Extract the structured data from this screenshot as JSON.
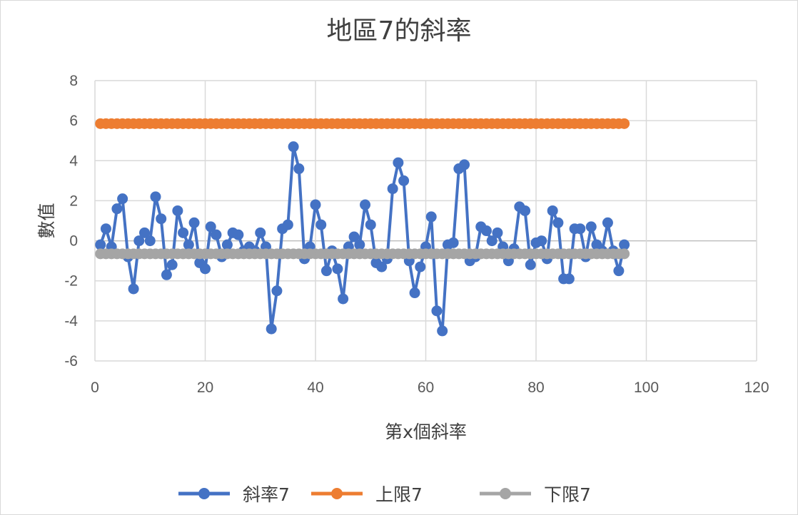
{
  "chart_data": {
    "type": "line",
    "title": "地區7的斜率",
    "xlabel": "第x個斜率",
    "ylabel": "數值",
    "xlim": [
      0,
      120
    ],
    "ylim": [
      -6,
      8
    ],
    "xticks": [
      0,
      20,
      40,
      60,
      80,
      100,
      120
    ],
    "yticks": [
      -6,
      -4,
      -2,
      0,
      2,
      4,
      6,
      8
    ],
    "grid": true,
    "legend_position": "bottom",
    "series": [
      {
        "name": "斜率7",
        "color": "#4472c4",
        "x": [
          1,
          2,
          3,
          4,
          5,
          6,
          7,
          8,
          9,
          10,
          11,
          12,
          13,
          14,
          15,
          16,
          17,
          18,
          19,
          20,
          21,
          22,
          23,
          24,
          25,
          26,
          27,
          28,
          29,
          30,
          31,
          32,
          33,
          34,
          35,
          36,
          37,
          38,
          39,
          40,
          41,
          42,
          43,
          44,
          45,
          46,
          47,
          48,
          49,
          50,
          51,
          52,
          53,
          54,
          55,
          56,
          57,
          58,
          59,
          60,
          61,
          62,
          63,
          64,
          65,
          66,
          67,
          68,
          69,
          70,
          71,
          72,
          73,
          74,
          75,
          76,
          77,
          78,
          79,
          80,
          81,
          82,
          83,
          84,
          85,
          86,
          87,
          88,
          89,
          90,
          91,
          92,
          93,
          94,
          95,
          96
        ],
        "values": [
          -0.2,
          0.6,
          -0.3,
          1.6,
          2.1,
          -0.8,
          -2.4,
          0.0,
          0.4,
          0.0,
          2.2,
          1.1,
          -1.7,
          -1.2,
          1.5,
          0.4,
          -0.2,
          0.9,
          -1.1,
          -1.4,
          0.7,
          0.3,
          -0.8,
          -0.2,
          0.4,
          0.3,
          -0.5,
          -0.3,
          -0.5,
          0.4,
          -0.3,
          -4.4,
          -2.5,
          0.6,
          0.8,
          4.7,
          3.6,
          -0.9,
          -0.3,
          1.8,
          0.8,
          -1.5,
          -0.5,
          -1.4,
          -2.9,
          -0.3,
          0.2,
          -0.2,
          1.8,
          0.8,
          -1.1,
          -1.3,
          -0.9,
          2.6,
          3.9,
          3.0,
          -1.0,
          -2.6,
          -1.3,
          -0.3,
          1.2,
          -3.5,
          -4.5,
          -0.2,
          -0.1,
          3.6,
          3.8,
          -1.0,
          -0.8,
          0.7,
          0.5,
          0.0,
          0.4,
          -0.3,
          -1.0,
          -0.4,
          1.7,
          1.5,
          -1.2,
          -0.1,
          0.0,
          -0.9,
          1.5,
          0.9,
          -1.9,
          -1.9,
          0.6,
          0.6,
          -0.8,
          0.7,
          -0.2,
          -0.5,
          0.9,
          -0.5,
          -1.5,
          -0.2
        ]
      },
      {
        "name": "上限7",
        "color": "#ed7d31",
        "x": [
          1,
          2,
          3,
          4,
          5,
          6,
          7,
          8,
          9,
          10,
          11,
          12,
          13,
          14,
          15,
          16,
          17,
          18,
          19,
          20,
          21,
          22,
          23,
          24,
          25,
          26,
          27,
          28,
          29,
          30,
          31,
          32,
          33,
          34,
          35,
          36,
          37,
          38,
          39,
          40,
          41,
          42,
          43,
          44,
          45,
          46,
          47,
          48,
          49,
          50,
          51,
          52,
          53,
          54,
          55,
          56,
          57,
          58,
          59,
          60,
          61,
          62,
          63,
          64,
          65,
          66,
          67,
          68,
          69,
          70,
          71,
          72,
          73,
          74,
          75,
          76,
          77,
          78,
          79,
          80,
          81,
          82,
          83,
          84,
          85,
          86,
          87,
          88,
          89,
          90,
          91,
          92,
          93,
          94,
          95,
          96
        ],
        "values": [
          5.85,
          5.85,
          5.85,
          5.85,
          5.85,
          5.85,
          5.85,
          5.85,
          5.85,
          5.85,
          5.85,
          5.85,
          5.85,
          5.85,
          5.85,
          5.85,
          5.85,
          5.85,
          5.85,
          5.85,
          5.85,
          5.85,
          5.85,
          5.85,
          5.85,
          5.85,
          5.85,
          5.85,
          5.85,
          5.85,
          5.85,
          5.85,
          5.85,
          5.85,
          5.85,
          5.85,
          5.85,
          5.85,
          5.85,
          5.85,
          5.85,
          5.85,
          5.85,
          5.85,
          5.85,
          5.85,
          5.85,
          5.85,
          5.85,
          5.85,
          5.85,
          5.85,
          5.85,
          5.85,
          5.85,
          5.85,
          5.85,
          5.85,
          5.85,
          5.85,
          5.85,
          5.85,
          5.85,
          5.85,
          5.85,
          5.85,
          5.85,
          5.85,
          5.85,
          5.85,
          5.85,
          5.85,
          5.85,
          5.85,
          5.85,
          5.85,
          5.85,
          5.85,
          5.85,
          5.85,
          5.85,
          5.85,
          5.85,
          5.85,
          5.85,
          5.85,
          5.85,
          5.85,
          5.85,
          5.85,
          5.85,
          5.85,
          5.85,
          5.85,
          5.85,
          5.85
        ]
      },
      {
        "name": "下限7",
        "color": "#a5a5a5",
        "x": [
          1,
          2,
          3,
          4,
          5,
          6,
          7,
          8,
          9,
          10,
          11,
          12,
          13,
          14,
          15,
          16,
          17,
          18,
          19,
          20,
          21,
          22,
          23,
          24,
          25,
          26,
          27,
          28,
          29,
          30,
          31,
          32,
          33,
          34,
          35,
          36,
          37,
          38,
          39,
          40,
          41,
          42,
          43,
          44,
          45,
          46,
          47,
          48,
          49,
          50,
          51,
          52,
          53,
          54,
          55,
          56,
          57,
          58,
          59,
          60,
          61,
          62,
          63,
          64,
          65,
          66,
          67,
          68,
          69,
          70,
          71,
          72,
          73,
          74,
          75,
          76,
          77,
          78,
          79,
          80,
          81,
          82,
          83,
          84,
          85,
          86,
          87,
          88,
          89,
          90,
          91,
          92,
          93,
          94,
          95,
          96
        ],
        "values": [
          -0.65,
          -0.65,
          -0.65,
          -0.65,
          -0.65,
          -0.65,
          -0.65,
          -0.65,
          -0.65,
          -0.65,
          -0.65,
          -0.65,
          -0.65,
          -0.65,
          -0.65,
          -0.65,
          -0.65,
          -0.65,
          -0.65,
          -0.65,
          -0.65,
          -0.65,
          -0.65,
          -0.65,
          -0.65,
          -0.65,
          -0.65,
          -0.65,
          -0.65,
          -0.65,
          -0.65,
          -0.65,
          -0.65,
          -0.65,
          -0.65,
          -0.65,
          -0.65,
          -0.65,
          -0.65,
          -0.65,
          -0.65,
          -0.65,
          -0.65,
          -0.65,
          -0.65,
          -0.65,
          -0.65,
          -0.65,
          -0.65,
          -0.65,
          -0.65,
          -0.65,
          -0.65,
          -0.65,
          -0.65,
          -0.65,
          -0.65,
          -0.65,
          -0.65,
          -0.65,
          -0.65,
          -0.65,
          -0.65,
          -0.65,
          -0.65,
          -0.65,
          -0.65,
          -0.65,
          -0.65,
          -0.65,
          -0.65,
          -0.65,
          -0.65,
          -0.65,
          -0.65,
          -0.65,
          -0.65,
          -0.65,
          -0.65,
          -0.65,
          -0.65,
          -0.65,
          -0.65,
          -0.65,
          -0.65,
          -0.65,
          -0.65,
          -0.65,
          -0.65,
          -0.65,
          -0.65,
          -0.65,
          -0.65,
          -0.65,
          -0.65,
          -0.65
        ]
      }
    ]
  }
}
